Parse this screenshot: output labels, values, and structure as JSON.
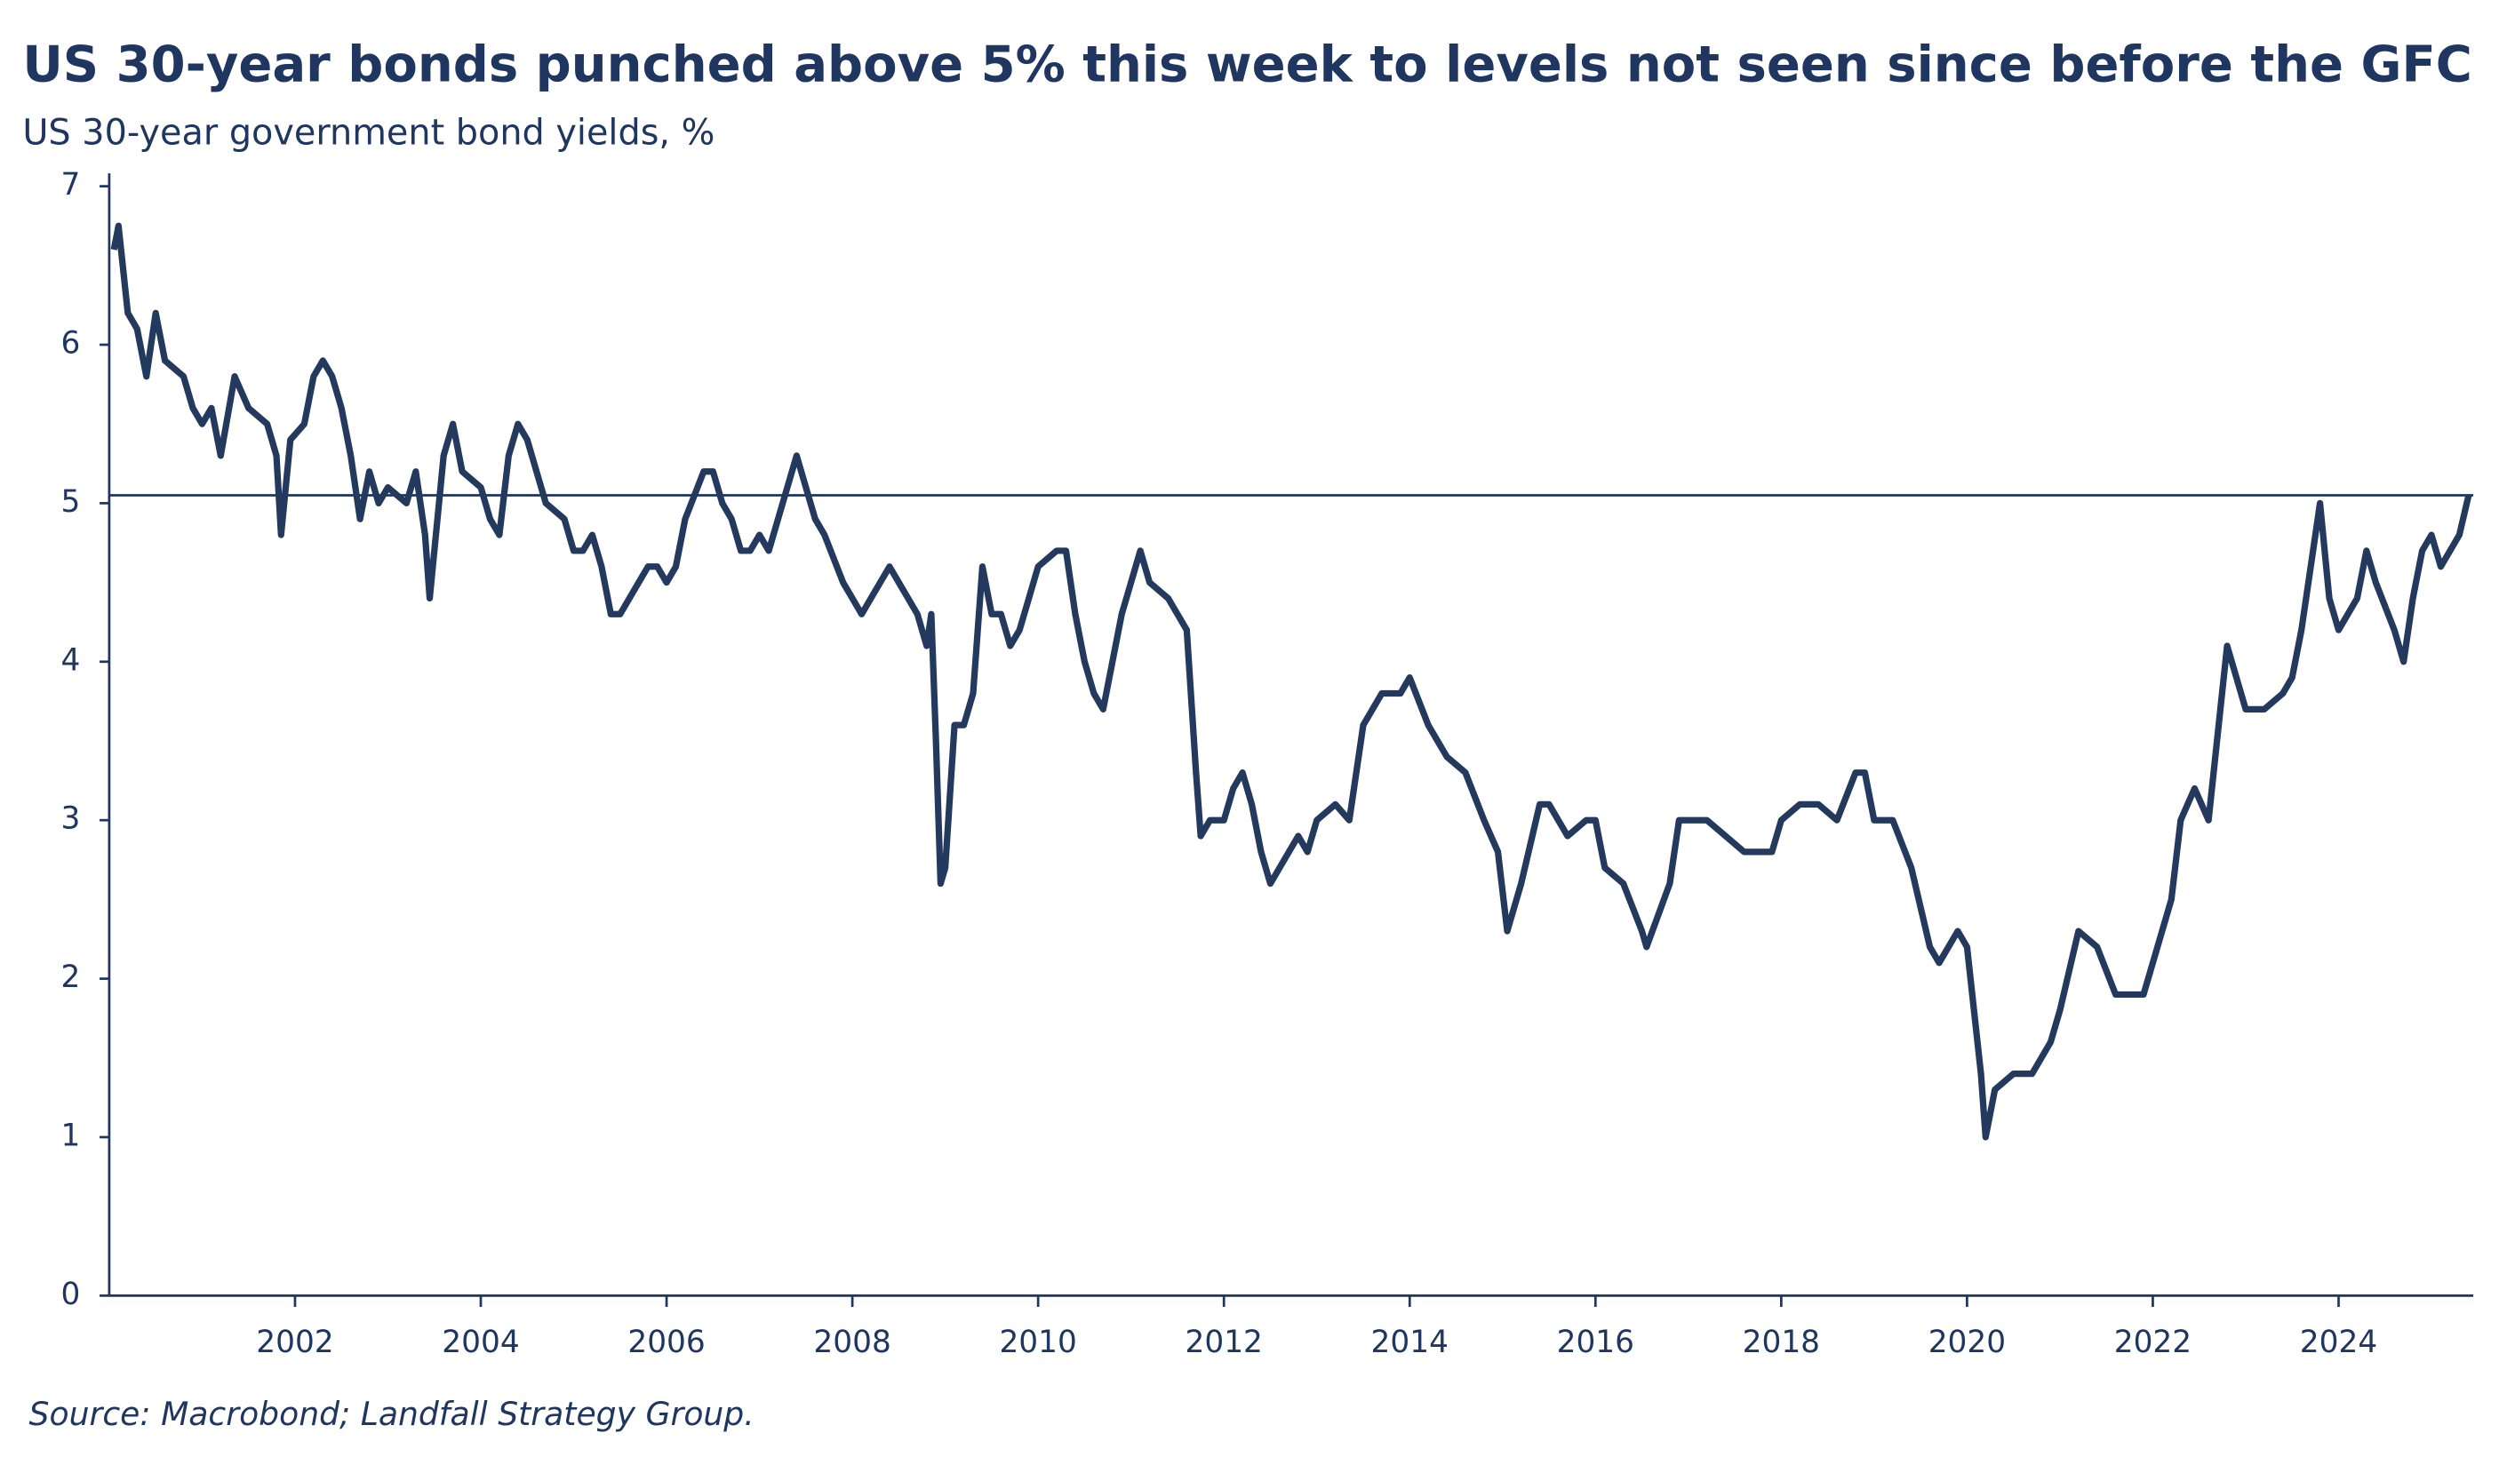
{
  "chart_data": {
    "type": "line",
    "title": "US 30-year bonds punched above 5% this week to levels not seen since before the GFC",
    "subtitle": "US 30-year government bond yields, %",
    "source": "Source: Macrobond; Landfall Strategy Group.",
    "xlim": [
      2000,
      2025.45
    ],
    "xticks": [
      2002,
      2004,
      2006,
      2008,
      2010,
      2012,
      2014,
      2016,
      2018,
      2020,
      2022,
      2024
    ],
    "ylim": [
      0,
      7
    ],
    "yticks": [
      0,
      1,
      2,
      3,
      4,
      5,
      6,
      7
    ],
    "reference_line": 5.05,
    "x": [
      2000.05,
      2000.1,
      2000.2,
      2000.3,
      2000.4,
      2000.5,
      2000.6,
      2000.8,
      2000.9,
      2001.0,
      2001.1,
      2001.2,
      2001.35,
      2001.5,
      2001.7,
      2001.8,
      2001.85,
      2001.95,
      2002.1,
      2002.2,
      2002.3,
      2002.4,
      2002.5,
      2002.6,
      2002.7,
      2002.8,
      2002.9,
      2003.0,
      2003.2,
      2003.3,
      2003.4,
      2003.45,
      2003.55,
      2003.6,
      2003.7,
      2003.8,
      2004.0,
      2004.1,
      2004.2,
      2004.3,
      2004.4,
      2004.5,
      2004.6,
      2004.7,
      2004.9,
      2005.0,
      2005.1,
      2005.2,
      2005.3,
      2005.4,
      2005.5,
      2005.6,
      2005.7,
      2005.8,
      2005.9,
      2006.0,
      2006.1,
      2006.2,
      2006.4,
      2006.5,
      2006.6,
      2006.7,
      2006.8,
      2006.9,
      2007.0,
      2007.1,
      2007.2,
      2007.4,
      2007.5,
      2007.6,
      2007.7,
      2007.9,
      2008.0,
      2008.1,
      2008.2,
      2008.4,
      2008.5,
      2008.6,
      2008.7,
      2008.8,
      2008.85,
      2008.9,
      2008.95,
      2009.0,
      2009.1,
      2009.2,
      2009.3,
      2009.4,
      2009.5,
      2009.6,
      2009.7,
      2009.8,
      2009.9,
      2010.0,
      2010.2,
      2010.3,
      2010.4,
      2010.5,
      2010.6,
      2010.7,
      2010.8,
      2010.9,
      2011.0,
      2011.1,
      2011.2,
      2011.4,
      2011.5,
      2011.6,
      2011.7,
      2011.75,
      2011.85,
      2012.0,
      2012.1,
      2012.2,
      2012.3,
      2012.4,
      2012.5,
      2012.6,
      2012.8,
      2012.9,
      2013.0,
      2013.2,
      2013.35,
      2013.5,
      2013.7,
      2013.9,
      2014.0,
      2014.2,
      2014.4,
      2014.6,
      2014.8,
      2014.95,
      2015.05,
      2015.2,
      2015.4,
      2015.5,
      2015.7,
      2015.9,
      2016.0,
      2016.1,
      2016.3,
      2016.5,
      2016.55,
      2016.8,
      2016.9,
      2017.0,
      2017.2,
      2017.4,
      2017.6,
      2017.8,
      2017.9,
      2018.0,
      2018.2,
      2018.4,
      2018.6,
      2018.8,
      2018.9,
      2019.0,
      2019.2,
      2019.4,
      2019.6,
      2019.7,
      2019.9,
      2020.0,
      2020.15,
      2020.2,
      2020.3,
      2020.5,
      2020.7,
      2020.9,
      2021.0,
      2021.2,
      2021.4,
      2021.6,
      2021.8,
      2021.9,
      2022.0,
      2022.2,
      2022.3,
      2022.45,
      2022.6,
      2022.8,
      2022.9,
      2023.0,
      2023.2,
      2023.4,
      2023.5,
      2023.6,
      2023.8,
      2023.9,
      2024.0,
      2024.2,
      2024.3,
      2024.4,
      2024.6,
      2024.7,
      2024.8,
      2024.9,
      2025.0,
      2025.1,
      2025.3,
      2025.4
    ],
    "series": [
      {
        "name": "US 30-year government bond yield",
        "color": "#23395d",
        "values": [
          6.6,
          6.75,
          6.2,
          6.1,
          5.8,
          6.2,
          5.9,
          5.8,
          5.6,
          5.5,
          5.6,
          5.3,
          5.8,
          5.6,
          5.5,
          5.3,
          4.8,
          5.4,
          5.5,
          5.8,
          5.9,
          5.8,
          5.6,
          5.3,
          4.9,
          5.2,
          5.0,
          5.1,
          5.0,
          5.2,
          4.8,
          4.4,
          5.0,
          5.3,
          5.5,
          5.2,
          5.1,
          4.9,
          4.8,
          5.3,
          5.5,
          5.4,
          5.2,
          5.0,
          4.9,
          4.7,
          4.7,
          4.8,
          4.6,
          4.3,
          4.3,
          4.4,
          4.5,
          4.6,
          4.6,
          4.5,
          4.6,
          4.9,
          5.2,
          5.2,
          5.0,
          4.9,
          4.7,
          4.7,
          4.8,
          4.7,
          4.9,
          5.3,
          5.1,
          4.9,
          4.8,
          4.5,
          4.4,
          4.3,
          4.4,
          4.6,
          4.5,
          4.4,
          4.3,
          4.1,
          4.3,
          3.5,
          2.6,
          2.7,
          3.6,
          3.6,
          3.8,
          4.6,
          4.3,
          4.3,
          4.1,
          4.2,
          4.4,
          4.6,
          4.7,
          4.7,
          4.3,
          4.0,
          3.8,
          3.7,
          4.0,
          4.3,
          4.5,
          4.7,
          4.5,
          4.4,
          4.3,
          4.2,
          3.3,
          2.9,
          3.0,
          3.0,
          3.2,
          3.3,
          3.1,
          2.8,
          2.6,
          2.7,
          2.9,
          2.8,
          3.0,
          3.1,
          3.0,
          3.6,
          3.8,
          3.8,
          3.9,
          3.6,
          3.4,
          3.3,
          3.0,
          2.8,
          2.3,
          2.6,
          3.1,
          3.1,
          2.9,
          3.0,
          3.0,
          2.7,
          2.6,
          2.3,
          2.2,
          2.6,
          3.0,
          3.0,
          3.0,
          2.9,
          2.8,
          2.8,
          2.8,
          3.0,
          3.1,
          3.1,
          3.0,
          3.3,
          3.3,
          3.0,
          3.0,
          2.7,
          2.2,
          2.1,
          2.3,
          2.2,
          1.4,
          1.0,
          1.3,
          1.4,
          1.4,
          1.6,
          1.8,
          2.3,
          2.2,
          1.9,
          1.9,
          1.9,
          2.1,
          2.5,
          3.0,
          3.2,
          3.0,
          4.1,
          3.9,
          3.7,
          3.7,
          3.8,
          3.9,
          4.2,
          5.0,
          4.4,
          4.2,
          4.4,
          4.7,
          4.5,
          4.2,
          4.0,
          4.4,
          4.7,
          4.8,
          4.6,
          4.8,
          5.05
        ]
      }
    ]
  }
}
